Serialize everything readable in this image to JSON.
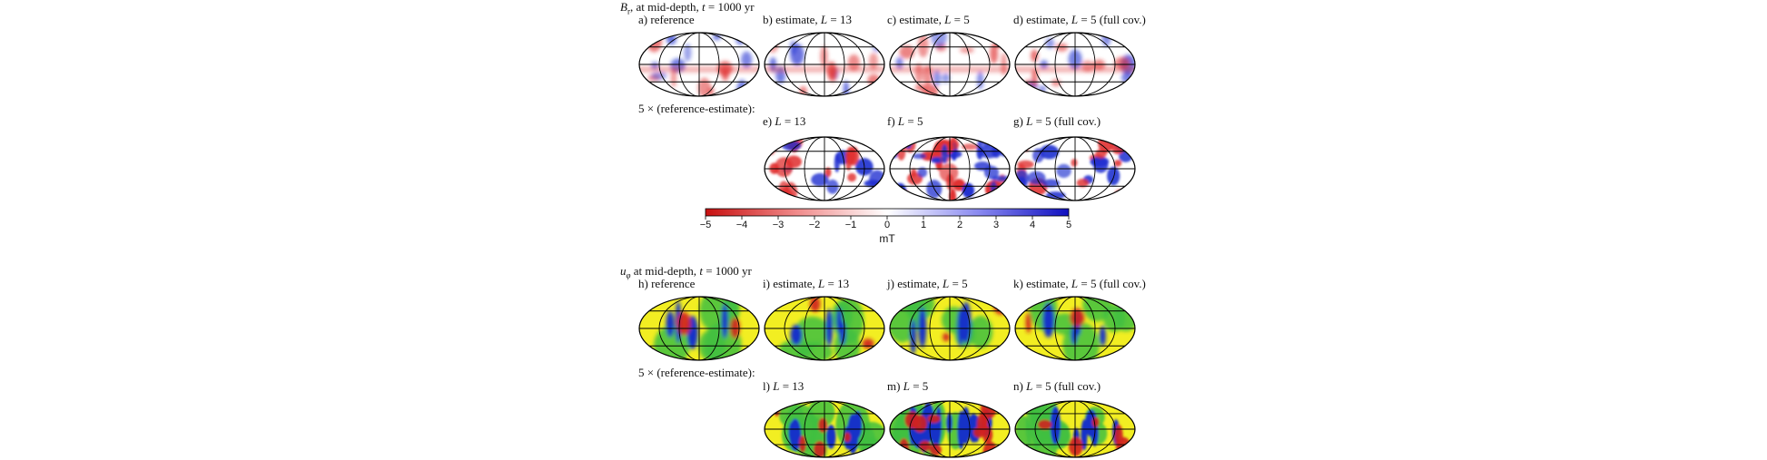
{
  "section_b": {
    "title_var": "B",
    "title_sub": "r",
    "title_rest": ", at mid-depth, ",
    "title_t": "t",
    "title_tail": " = 1000 yr",
    "diff_label": "5 × (reference-estimate):"
  },
  "section_u": {
    "title_var": "u",
    "title_sub": "φ",
    "title_rest": " at mid-depth, ",
    "title_t": "t",
    "title_tail": " = 1000 yr",
    "diff_label": "5 × (reference-estimate):"
  },
  "panels": [
    {
      "id": "a",
      "prefix": "a) ",
      "text": "reference",
      "italic": "",
      "suffix": "",
      "field": "br",
      "kind": "ref"
    },
    {
      "id": "b",
      "prefix": "b) estimate, ",
      "text": "",
      "italic": "L",
      "suffix": " = 13",
      "field": "br",
      "kind": "est13"
    },
    {
      "id": "c",
      "prefix": "c) estimate, ",
      "text": "",
      "italic": "L",
      "suffix": " = 5",
      "field": "br",
      "kind": "est5"
    },
    {
      "id": "d",
      "prefix": "d) estimate, ",
      "text": "",
      "italic": "L",
      "suffix": " = 5 (full cov.)",
      "field": "br",
      "kind": "est5f"
    },
    {
      "id": "e",
      "prefix": "e) ",
      "text": "",
      "italic": "L",
      "suffix": " = 13",
      "field": "br",
      "kind": "diff13"
    },
    {
      "id": "f",
      "prefix": "f) ",
      "text": "",
      "italic": "L",
      "suffix": " = 5",
      "field": "br",
      "kind": "diff5"
    },
    {
      "id": "g",
      "prefix": "g) ",
      "text": "",
      "italic": "L",
      "suffix": " = 5 (full cov.)",
      "field": "br",
      "kind": "diff5f"
    },
    {
      "id": "h",
      "prefix": "h) ",
      "text": "reference",
      "italic": "",
      "suffix": "",
      "field": "u",
      "kind": "ref"
    },
    {
      "id": "i",
      "prefix": "i) estimate, ",
      "text": "",
      "italic": "L",
      "suffix": " = 13",
      "field": "u",
      "kind": "est13"
    },
    {
      "id": "j",
      "prefix": "j) estimate, ",
      "text": "",
      "italic": "L",
      "suffix": " = 5",
      "field": "u",
      "kind": "est5"
    },
    {
      "id": "k",
      "prefix": "k) estimate, ",
      "text": "",
      "italic": "L",
      "suffix": " = 5 (full cov.)",
      "field": "u",
      "kind": "est5f"
    },
    {
      "id": "l",
      "prefix": "l) ",
      "text": "",
      "italic": "L",
      "suffix": " = 13",
      "field": "u",
      "kind": "diff13"
    },
    {
      "id": "m",
      "prefix": "m) ",
      "text": "",
      "italic": "L",
      "suffix": " = 5",
      "field": "u",
      "kind": "diff5"
    },
    {
      "id": "n",
      "prefix": "n) ",
      "text": "",
      "italic": "L",
      "suffix": " = 5 (full cov.)",
      "field": "u",
      "kind": "diff5f"
    }
  ],
  "colorbar": {
    "ticks": [
      "−5",
      "−4",
      "−3",
      "−2",
      "−1",
      "0",
      "1",
      "2",
      "3",
      "4",
      "5"
    ],
    "unit": "mT",
    "low_color": "#d7191c",
    "mid_color": "#ffffff",
    "high_color": "#1a1ad0"
  },
  "colors": {
    "u_background": "#f2ee22",
    "u_green": "#3fbf3f",
    "u_blue": "#1530c8",
    "u_red": "#d02020",
    "br_red": "#e03030",
    "br_blue": "#2030d0"
  }
}
